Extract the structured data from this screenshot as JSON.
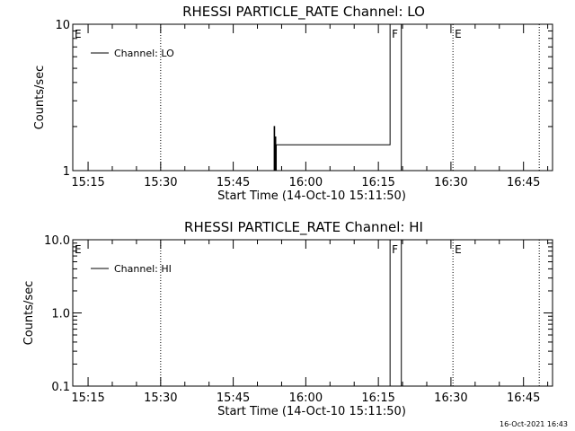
{
  "footer": {
    "timestamp": "16-Oct-2021 16:43"
  },
  "chart_data": [
    {
      "type": "line",
      "title": "RHESSI PARTICLE_RATE Channel: LO",
      "xlabel": "Start Time (14-Oct-10 15:11:50)",
      "ylabel": "Counts/sec",
      "yscale": "log",
      "xlim": [
        "15:11:50",
        "16:51:00"
      ],
      "ylim": [
        1,
        10
      ],
      "xticks": [
        "15:15",
        "15:30",
        "15:45",
        "16:00",
        "16:15",
        "16:30",
        "16:45"
      ],
      "yticks": [
        "1",
        "10"
      ],
      "grid": false,
      "legend": {
        "position": "top-left",
        "entries": [
          "Channel: LO"
        ]
      },
      "series": [
        {
          "name": "Channel: LO",
          "x": [
            "15:53:27",
            "15:53:27",
            "15:53:34",
            "15:53:34",
            "15:53:41",
            "15:53:41",
            "15:53:48",
            "15:53:48",
            "15:53:54",
            "15:53:54",
            "16:17:25",
            "16:17:25",
            "16:19:45",
            "16:19:45"
          ],
          "y": [
            1,
            2,
            2,
            1,
            1,
            1.7,
            1.7,
            1,
            1,
            1.5,
            1.5,
            10,
            10,
            1
          ]
        }
      ],
      "annotations": [
        {
          "text": "E",
          "x": "15:11:50"
        },
        {
          "text": "F",
          "x": "16:17:25"
        },
        {
          "text": "E",
          "x": "16:30:25"
        }
      ],
      "vlines": [
        "15:30:00",
        "16:30:25",
        "16:48:15"
      ]
    },
    {
      "type": "line",
      "title": "RHESSI PARTICLE_RATE Channel: HI",
      "xlabel": "Start Time (14-Oct-10 15:11:50)",
      "ylabel": "Counts/sec",
      "yscale": "log",
      "xlim": [
        "15:11:50",
        "16:51:00"
      ],
      "ylim": [
        0.1,
        10
      ],
      "xticks": [
        "15:15",
        "15:30",
        "15:45",
        "16:00",
        "16:15",
        "16:30",
        "16:45"
      ],
      "yticks": [
        "0.1",
        "1.0",
        "10.0"
      ],
      "grid": false,
      "legend": {
        "position": "top-left",
        "entries": [
          "Channel: HI"
        ]
      },
      "series": [
        {
          "name": "Channel: HI",
          "x": [
            "16:17:25",
            "16:17:25",
            "16:19:45",
            "16:19:45"
          ],
          "y": [
            0.1,
            10,
            10,
            0.1
          ]
        }
      ],
      "annotations": [
        {
          "text": "E",
          "x": "15:11:50"
        },
        {
          "text": "F",
          "x": "16:17:25"
        },
        {
          "text": "E",
          "x": "16:30:25"
        }
      ],
      "vlines": [
        "15:30:00",
        "16:30:25",
        "16:48:15"
      ]
    }
  ]
}
